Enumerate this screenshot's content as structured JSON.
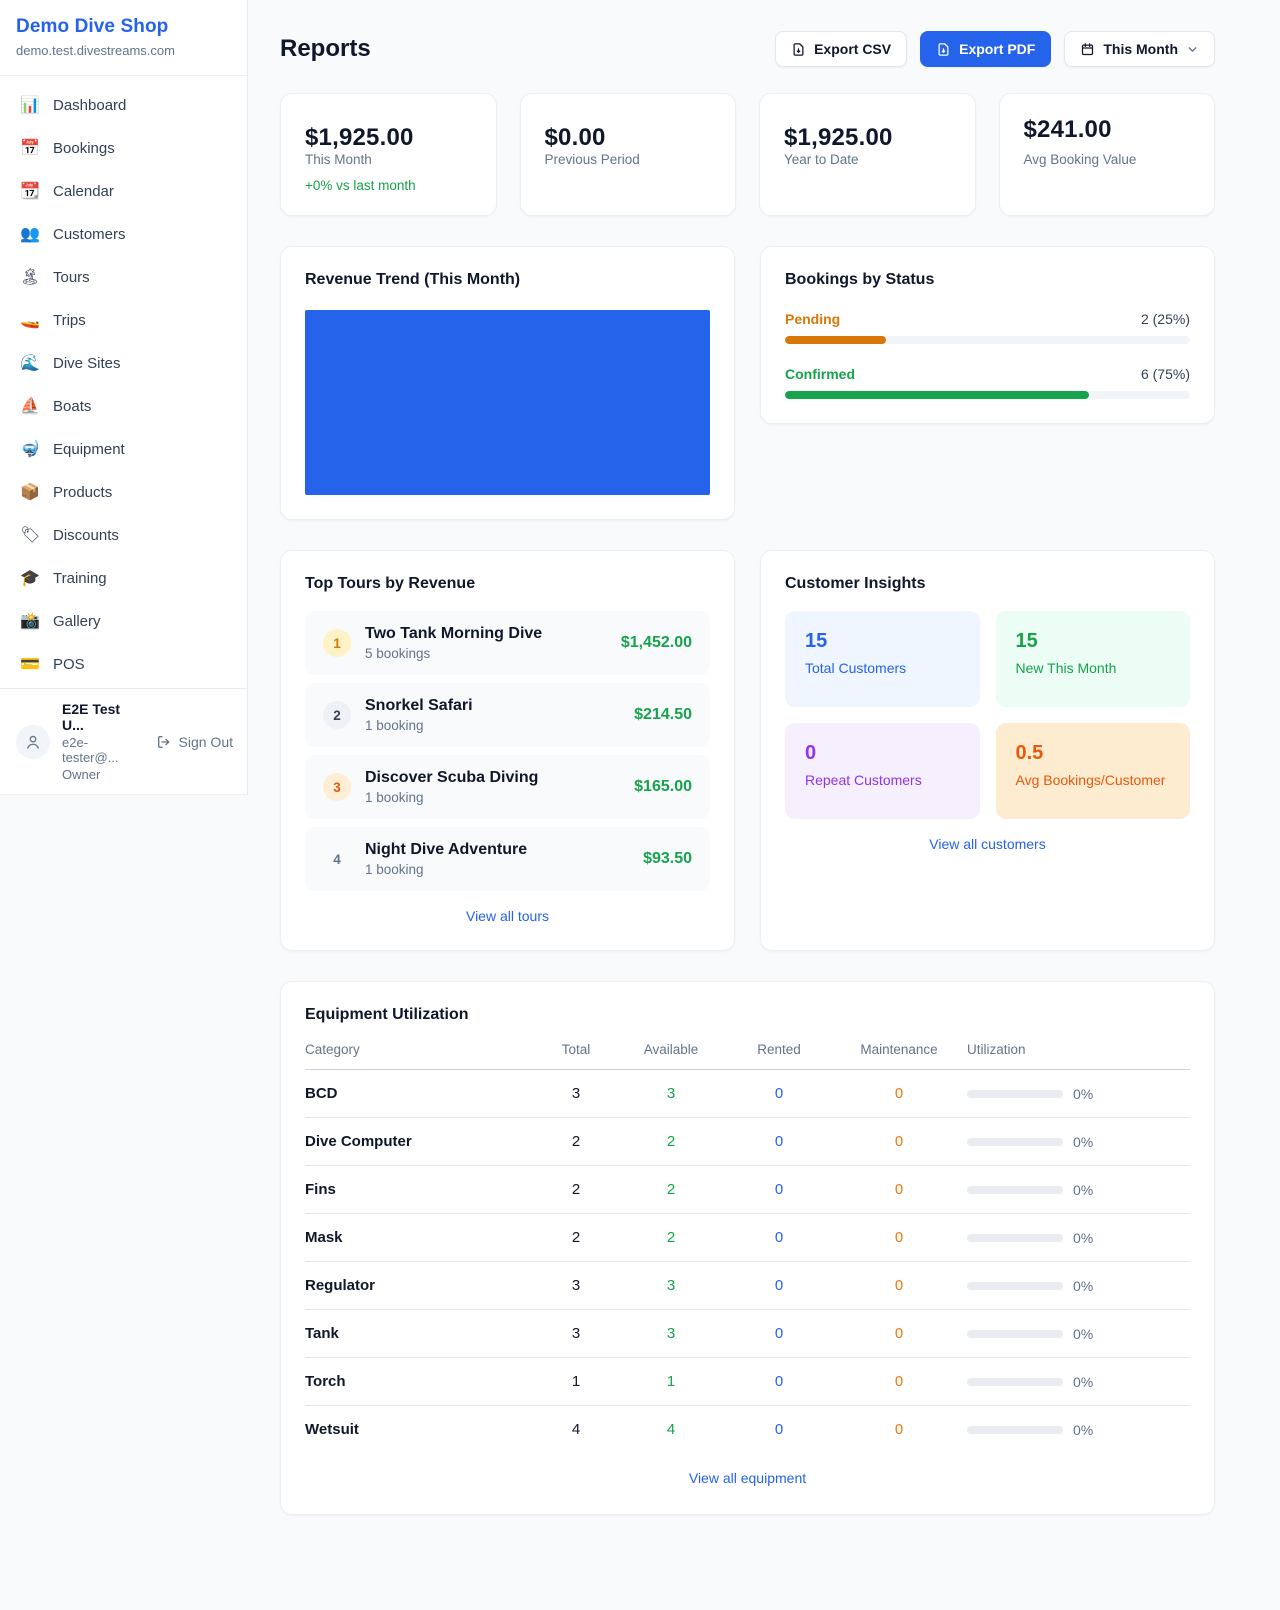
{
  "app": {
    "name": "Demo Dive Shop",
    "domain": "demo.test.divestreams.com"
  },
  "sidebar": {
    "items": [
      {
        "label": "Dashboard",
        "icon": "📊",
        "icon_name": "bar-chart-icon"
      },
      {
        "label": "Bookings",
        "icon": "📅",
        "icon_name": "calendar-date-icon"
      },
      {
        "label": "Calendar",
        "icon": "📆",
        "icon_name": "calendar-icon"
      },
      {
        "label": "Customers",
        "icon": "👥",
        "icon_name": "people-icon"
      },
      {
        "label": "Tours",
        "icon": "🏝",
        "icon_name": "island-icon"
      },
      {
        "label": "Trips",
        "icon": "🚤",
        "icon_name": "speedboat-icon"
      },
      {
        "label": "Dive Sites",
        "icon": "🌊",
        "icon_name": "wave-icon"
      },
      {
        "label": "Boats",
        "icon": "⛵",
        "icon_name": "sailboat-icon"
      },
      {
        "label": "Equipment",
        "icon": "🤿",
        "icon_name": "dive-mask-icon"
      },
      {
        "label": "Products",
        "icon": "📦",
        "icon_name": "package-icon"
      },
      {
        "label": "Discounts",
        "icon": "🏷",
        "icon_name": "tag-icon"
      },
      {
        "label": "Training",
        "icon": "🎓",
        "icon_name": "graduation-cap-icon"
      },
      {
        "label": "Gallery",
        "icon": "📸",
        "icon_name": "camera-icon"
      },
      {
        "label": "POS",
        "icon": "💳",
        "icon_name": "credit-card-icon"
      }
    ],
    "user": {
      "name": "E2E Test U...",
      "email": "e2e-tester@...",
      "role": "Owner",
      "signout_label": "Sign Out"
    }
  },
  "header": {
    "title": "Reports",
    "export_csv_label": "Export CSV",
    "export_pdf_label": "Export PDF",
    "period_label": "This Month"
  },
  "stats": [
    {
      "label": "This Month",
      "value": "$1,925.00",
      "sub": "+0% vs last month"
    },
    {
      "label": "Previous Period",
      "value": "$0.00"
    },
    {
      "label": "Year to Date",
      "value": "$1,925.00"
    },
    {
      "label": "Avg Booking Value",
      "value": "$241.00",
      "flip": "flip"
    }
  ],
  "revenue_trend": {
    "title": "Revenue Trend (This Month)",
    "bar_color": "#2563eb"
  },
  "bookings_by_status": {
    "title": "Bookings by Status",
    "rows": [
      {
        "label": "Pending",
        "value": "2 (25%)",
        "pct": 25,
        "color": "#d97706"
      },
      {
        "label": "Confirmed",
        "value": "6 (75%)",
        "pct": 75,
        "color": "#16a34a"
      }
    ]
  },
  "top_tours": {
    "title": "Top Tours by Revenue",
    "items": [
      {
        "rank": "1",
        "tone": "gold",
        "name": "Two Tank Morning Dive",
        "bookings": "5 bookings",
        "revenue": "$1,452.00"
      },
      {
        "rank": "2",
        "tone": "silver",
        "name": "Snorkel Safari",
        "bookings": "1 booking",
        "revenue": "$214.50"
      },
      {
        "rank": "3",
        "tone": "bronze",
        "name": "Discover Scuba Diving",
        "bookings": "1 booking",
        "revenue": "$165.00"
      },
      {
        "rank": "4",
        "tone": "plain",
        "name": "Night Dive Adventure",
        "bookings": "1 booking",
        "revenue": "$93.50"
      }
    ],
    "view_all": "View all tours"
  },
  "customer_insights": {
    "title": "Customer Insights",
    "tiles": [
      {
        "value": "15",
        "label": "Total Customers",
        "theme": "blue"
      },
      {
        "value": "15",
        "label": "New This Month",
        "theme": "green"
      },
      {
        "value": "0",
        "label": "Repeat Customers",
        "theme": "purple"
      },
      {
        "value": "0.5",
        "label": "Avg Bookings/Customer",
        "theme": "orange"
      }
    ],
    "view_all": "View all customers"
  },
  "equipment": {
    "title": "Equipment Utilization",
    "columns": {
      "category": "Category",
      "total": "Total",
      "available": "Available",
      "rented": "Rented",
      "maintenance": "Maintenance",
      "utilization": "Utilization"
    },
    "rows": [
      {
        "category": "BCD",
        "total": "3",
        "available": "3",
        "rented": "0",
        "maintenance": "0",
        "utilization": "0%"
      },
      {
        "category": "Dive Computer",
        "total": "2",
        "available": "2",
        "rented": "0",
        "maintenance": "0",
        "utilization": "0%"
      },
      {
        "category": "Fins",
        "total": "2",
        "available": "2",
        "rented": "0",
        "maintenance": "0",
        "utilization": "0%"
      },
      {
        "category": "Mask",
        "total": "2",
        "available": "2",
        "rented": "0",
        "maintenance": "0",
        "utilization": "0%"
      },
      {
        "category": "Regulator",
        "total": "3",
        "available": "3",
        "rented": "0",
        "maintenance": "0",
        "utilization": "0%"
      },
      {
        "category": "Tank",
        "total": "3",
        "available": "3",
        "rented": "0",
        "maintenance": "0",
        "utilization": "0%"
      },
      {
        "category": "Torch",
        "total": "1",
        "available": "1",
        "rented": "0",
        "maintenance": "0",
        "utilization": "0%"
      },
      {
        "category": "Wetsuit",
        "total": "4",
        "available": "4",
        "rented": "0",
        "maintenance": "0",
        "utilization": "0%"
      }
    ],
    "view_all": "View all equipment"
  }
}
